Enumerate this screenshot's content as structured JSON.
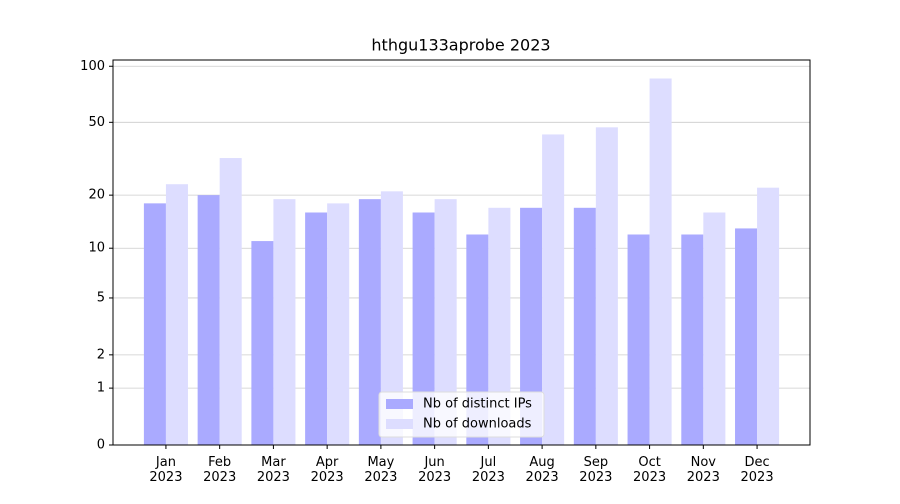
{
  "chart_data": {
    "type": "bar",
    "title": "hthgu133aprobe 2023",
    "categories": [
      "Jan\n2023",
      "Feb\n2023",
      "Mar\n2023",
      "Apr\n2023",
      "May\n2023",
      "Jun\n2023",
      "Jul\n2023",
      "Aug\n2023",
      "Sep\n2023",
      "Oct\n2023",
      "Nov\n2023",
      "Dec\n2023"
    ],
    "series": [
      {
        "name": "Nb of distinct IPs",
        "color": "#aaaaff",
        "values": [
          18,
          20,
          11,
          16,
          19,
          16,
          12,
          17,
          17,
          12,
          12,
          13
        ]
      },
      {
        "name": "Nb of downloads",
        "color": "#ddddff",
        "values": [
          23,
          32,
          19,
          18,
          21,
          19,
          17,
          43,
          47,
          86,
          16,
          22
        ]
      }
    ],
    "yscale": "log1p",
    "ylim": [
      0,
      108
    ],
    "yticks": [
      0,
      1,
      2,
      5,
      10,
      20,
      50,
      100
    ],
    "grid": true,
    "legend": "lower center"
  }
}
